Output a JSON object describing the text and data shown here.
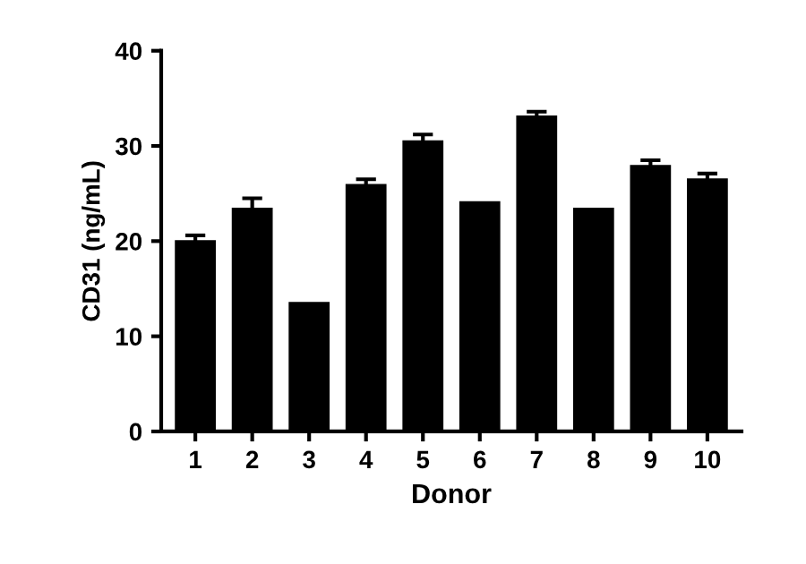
{
  "chart_data": {
    "type": "bar",
    "xlabel": "Donor",
    "ylabel": "CD31 (ng/mL)",
    "categories": [
      "1",
      "2",
      "3",
      "4",
      "5",
      "6",
      "7",
      "8",
      "9",
      "10"
    ],
    "values": [
      20.1,
      23.5,
      13.6,
      26.0,
      30.6,
      24.2,
      33.2,
      23.5,
      28.0,
      26.6
    ],
    "errors": [
      0.5,
      1.0,
      null,
      0.5,
      0.6,
      null,
      0.4,
      null,
      0.5,
      0.5
    ],
    "color": "#000000",
    "ylim": [
      0,
      40
    ],
    "yticks": [
      0,
      10,
      20,
      30,
      40
    ],
    "grid": false
  }
}
